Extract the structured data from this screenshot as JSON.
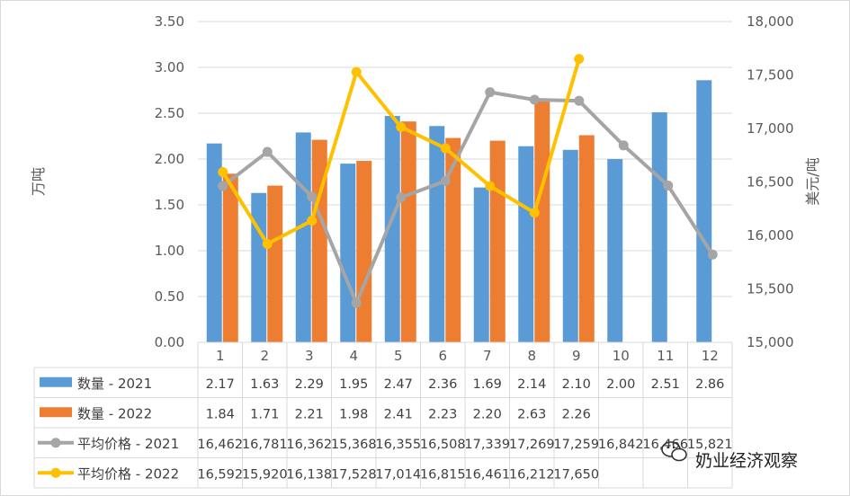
{
  "chart_data": {
    "type": "bar+line",
    "categories": [
      "1",
      "2",
      "3",
      "4",
      "5",
      "6",
      "7",
      "8",
      "9",
      "10",
      "11",
      "12"
    ],
    "y_left": {
      "title": "万吨",
      "range": [
        0,
        3.5
      ],
      "ticks": [
        "0.00",
        "0.50",
        "1.00",
        "1.50",
        "2.00",
        "2.50",
        "3.00",
        "3.50"
      ]
    },
    "y_right": {
      "title": "美元/吨",
      "range": [
        15000,
        18000
      ],
      "ticks": [
        "15,000",
        "15,500",
        "16,000",
        "16,500",
        "17,000",
        "17,500",
        "18,000"
      ]
    },
    "series": [
      {
        "name": "数量 - 2021",
        "kind": "bar",
        "axis": "left",
        "color": "#5b9bd5",
        "values": [
          2.17,
          1.63,
          2.29,
          1.95,
          2.47,
          2.36,
          1.69,
          2.14,
          2.1,
          2.0,
          2.51,
          2.86
        ],
        "labels": [
          "2.17",
          "1.63",
          "2.29",
          "1.95",
          "2.47",
          "2.36",
          "1.69",
          "2.14",
          "2.10",
          "2.00",
          "2.51",
          "2.86"
        ]
      },
      {
        "name": "数量 - 2022",
        "kind": "bar",
        "axis": "left",
        "color": "#ed7d31",
        "values": [
          1.84,
          1.71,
          2.21,
          1.98,
          2.41,
          2.23,
          2.2,
          2.63,
          2.26,
          null,
          null,
          null
        ],
        "labels": [
          "1.84",
          "1.71",
          "2.21",
          "1.98",
          "2.41",
          "2.23",
          "2.20",
          "2.63",
          "2.26",
          "",
          "",
          ""
        ]
      },
      {
        "name": "平均价格 - 2021",
        "kind": "line",
        "axis": "right",
        "color": "#a5a5a5",
        "values": [
          16462,
          16781,
          16362,
          15368,
          16355,
          16508,
          17339,
          17269,
          17259,
          16842,
          16466,
          15821
        ],
        "labels": [
          "16,462",
          "16,781",
          "16,362",
          "15,368",
          "16,355",
          "16,508",
          "17,339",
          "17,269",
          "17,259",
          "16,842",
          "16,466",
          "15,821"
        ]
      },
      {
        "name": "平均价格 - 2022",
        "kind": "line",
        "axis": "right",
        "color": "#ffc000",
        "values": [
          16592,
          15920,
          16138,
          17528,
          17014,
          16815,
          16461,
          16212,
          17650,
          null,
          null,
          null
        ],
        "labels": [
          "16,592",
          "15,920",
          "16,138",
          "17,528",
          "17,014",
          "16,815",
          "16,461",
          "16,212",
          "17,650",
          "",
          "",
          ""
        ]
      }
    ]
  },
  "watermark": {
    "icon": "wechat-icon",
    "text": "奶业经济观察"
  }
}
